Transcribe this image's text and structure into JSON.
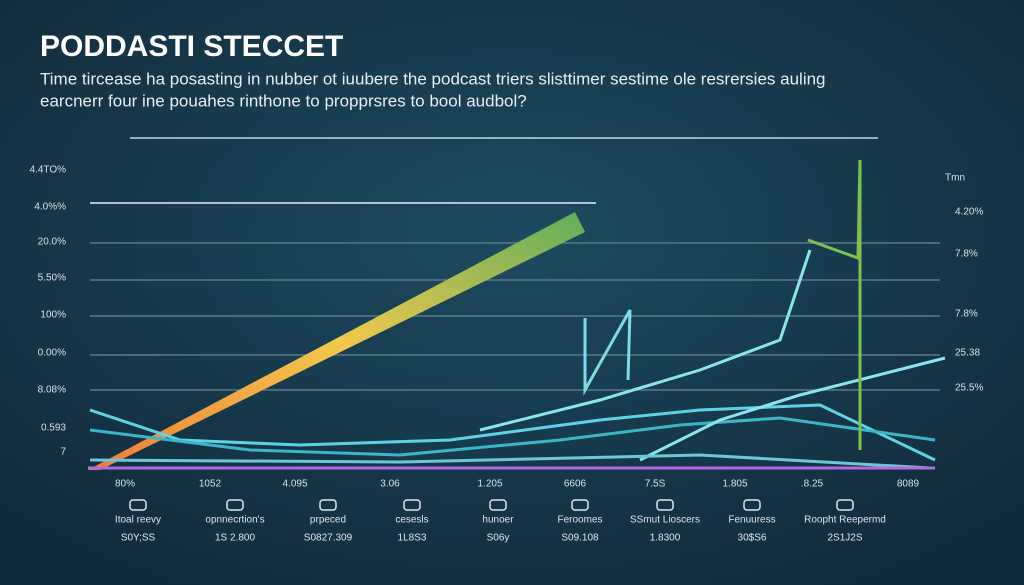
{
  "chart_data": {
    "type": "line",
    "title": "PODDASTI STECCET",
    "subtitle": [
      "Time tircease ha posasting in nubber ot iuubere the podcast triers slisttimer sestime ole resrersies auling",
      "earcnerr four ine pouahes rinthone to propprsres to bool audbol?"
    ],
    "y_labels": [
      "4.4TO%",
      "4.0%%",
      "20.0%",
      "5.50%",
      "100%",
      "0.00%",
      "8.08%",
      "0.593",
      "7"
    ],
    "y2_title": "Tmn",
    "y2_labels": [
      "4.20%",
      "7.8%",
      "7.8%",
      "25.38",
      "25.5%"
    ],
    "categories": [
      "80%",
      "1052",
      "4.095",
      "3.06",
      "1.205",
      "6606",
      "7.5S",
      "1.805",
      ".8.25",
      "8089"
    ],
    "captions": [
      "Itoal reevy",
      "opnnecrtion's",
      "prpeced",
      "cesesls",
      "hunoer",
      "Feroomes",
      "SSmut Lioscers",
      "Fenuuress",
      "Roopht Reepermd"
    ],
    "amounts": [
      "S0Y;SS",
      "1S 2.800",
      "S0827.309",
      "1L8S3",
      "S06y",
      "S09.108",
      "1.8300",
      "30$S6",
      "2S1J2S"
    ]
  }
}
